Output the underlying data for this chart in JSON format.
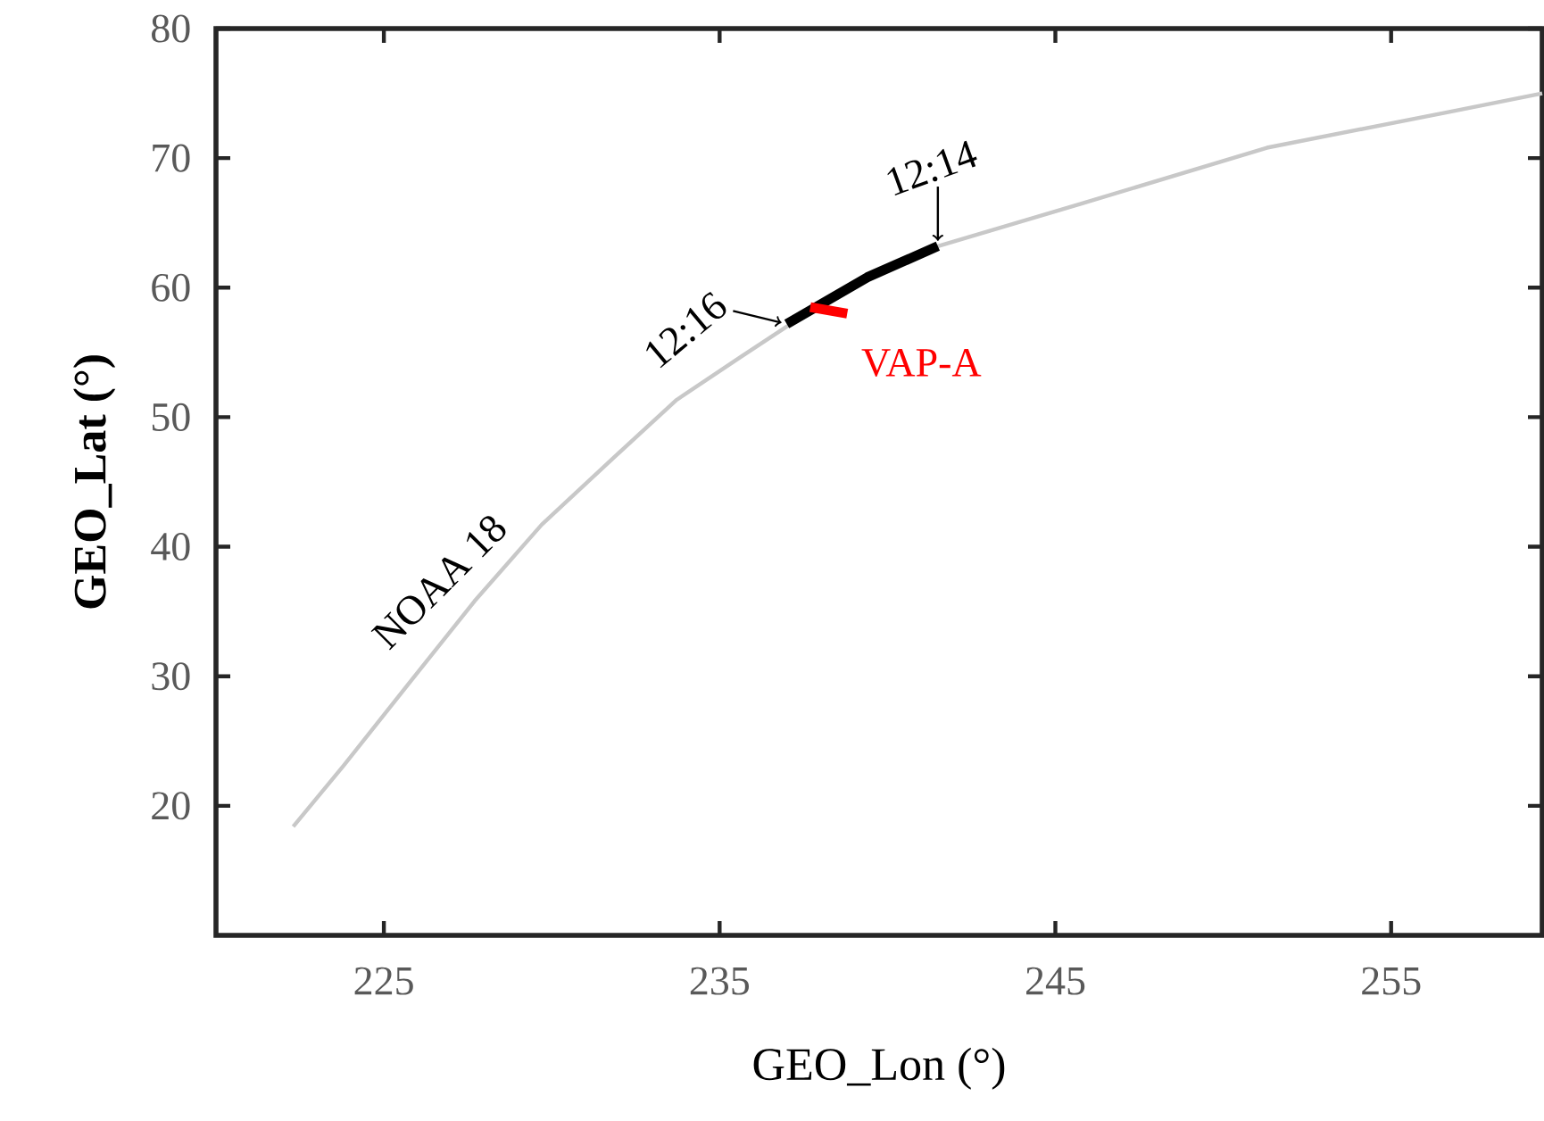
{
  "chart_data": {
    "type": "line",
    "xlabel": "GEO_Lon (°)",
    "ylabel": "GEO_Lat  (°)",
    "xlim": [
      220,
      259.5
    ],
    "xticks": [
      225,
      235,
      245,
      255
    ],
    "ylim": [
      10,
      80
    ],
    "yticks": [
      20,
      30,
      40,
      50,
      60,
      70,
      80
    ],
    "series": [
      {
        "name": "NOAA 18",
        "color": "#c8c8c8",
        "x": [
          222.3,
          223.8,
          225.7,
          227.7,
          229.7,
          231.9,
          233.7,
          235.6,
          237.0,
          239.4,
          241.5,
          245.8,
          251.3,
          256.8,
          259.5
        ],
        "values": [
          18.4,
          23.1,
          29.3,
          35.8,
          41.7,
          47.0,
          51.3,
          54.6,
          57.0,
          60.8,
          63.2,
          66.5,
          70.8,
          73.6,
          75.0
        ]
      },
      {
        "color": "#000000",
        "x": [
          237.0,
          239.4,
          241.5
        ],
        "values": [
          57.2,
          60.8,
          63.2
        ]
      },
      {
        "name": "VAP-A",
        "color": "#ff0000",
        "x": [
          237.7,
          238.8
        ],
        "values": [
          58.5,
          58.0
        ]
      }
    ],
    "annotations": [
      {
        "text": "12:16",
        "x": 237.0,
        "y": 57.2
      },
      {
        "text": "12:14",
        "x": 241.5,
        "y": 63.2
      }
    ]
  }
}
